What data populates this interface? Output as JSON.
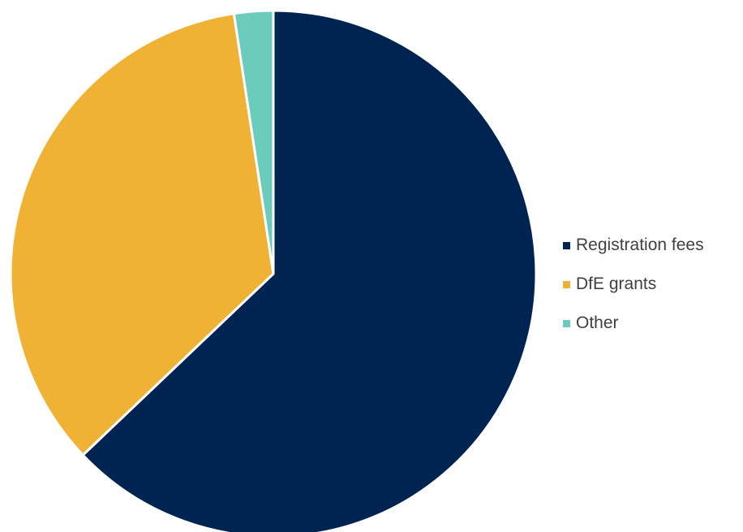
{
  "chart_data": {
    "type": "pie",
    "title": "",
    "categories": [
      "Registration fees",
      "DfE grants",
      "Other"
    ],
    "values": [
      62.9,
      34.7,
      2.4
    ],
    "colors": [
      "#002452",
      "#f0b234",
      "#6cccbb"
    ],
    "start_angle_deg": 0,
    "direction": "clockwise",
    "legend_position": "right",
    "show_data_labels": false
  }
}
